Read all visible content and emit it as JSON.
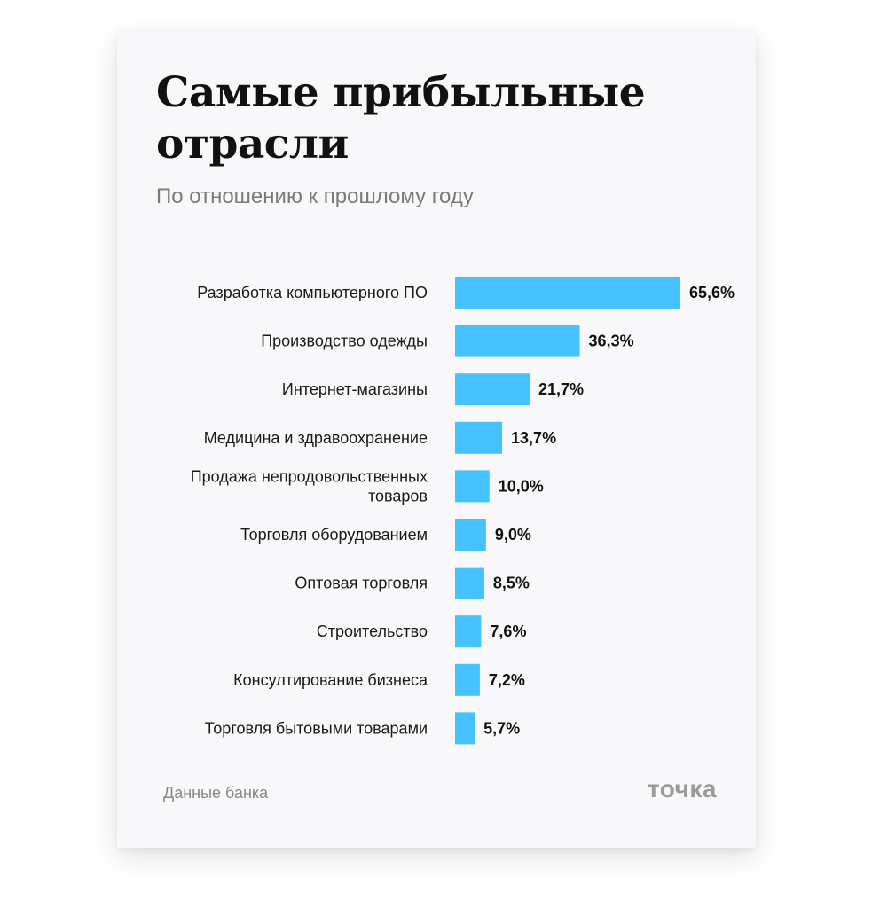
{
  "title": "Самые прибыльные отрасли",
  "subtitle": "По отношению к прошлому году",
  "source": "Данные банка",
  "logo": "точка",
  "colors": {
    "bar": "#45c2ff",
    "card": "#f8f8fa"
  },
  "chart_data": {
    "type": "bar",
    "orientation": "horizontal",
    "categories": [
      [
        "Разработка компьютерного ПО"
      ],
      [
        "Производство одежды"
      ],
      [
        "Интернет-магазины"
      ],
      [
        "Медицина и здравоохранение"
      ],
      [
        "Продажа непродовольственных",
        "товаров"
      ],
      [
        "Торговля оборудованием"
      ],
      [
        "Оптовая торговля"
      ],
      [
        "Строительство"
      ],
      [
        "Консултирование бизнеса"
      ],
      [
        "Торговля бытовыми товарами"
      ]
    ],
    "values": [
      65.6,
      36.3,
      21.7,
      13.7,
      10.0,
      9.0,
      8.5,
      7.6,
      7.2,
      5.7
    ],
    "value_labels": [
      "65,6%",
      "36,3%",
      "21,7%",
      "13,7%",
      "10,0%",
      "9,0%",
      "8,5%",
      "7,6%",
      "7,2%",
      "5,7%"
    ],
    "unit": "%",
    "grid": false,
    "legend": "none"
  }
}
